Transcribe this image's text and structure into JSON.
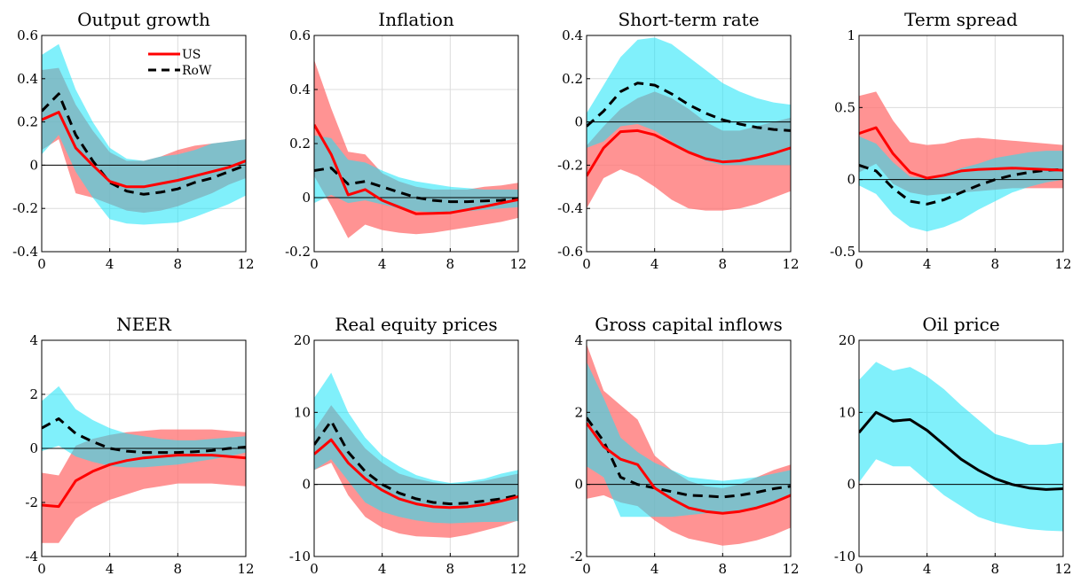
{
  "colors": {
    "us_line": "#ff0000",
    "us_band": "#ff6f6f",
    "row_line": "#000000",
    "row_band": "#17e3f8",
    "overlap": "#4a9fb0"
  },
  "chart_data": [
    {
      "type": "line",
      "title": "Output growth",
      "xlim": [
        0,
        12
      ],
      "ylim": [
        -0.4,
        0.6
      ],
      "xticks": [
        "0",
        "4",
        "8",
        "12"
      ],
      "yticks": [
        "-0.4",
        "-0.2",
        "0",
        "0.2",
        "0.4",
        "0.6"
      ],
      "legend": {
        "position": "top-right",
        "entries": [
          "US",
          "RoW"
        ]
      },
      "grid": true,
      "x": [
        0,
        1,
        2,
        3,
        4,
        5,
        6,
        7,
        8,
        9,
        10,
        11,
        12
      ],
      "series": [
        {
          "name": "US",
          "style": "solid",
          "color": "#ff0000",
          "values": [
            0.21,
            0.245,
            0.08,
            0.0,
            -0.075,
            -0.1,
            -0.1,
            -0.085,
            -0.07,
            -0.05,
            -0.03,
            -0.01,
            0.02
          ],
          "lower": [
            0.07,
            0.12,
            -0.13,
            -0.15,
            -0.18,
            -0.21,
            -0.22,
            -0.21,
            -0.19,
            -0.16,
            -0.13,
            -0.09,
            -0.06
          ],
          "upper": [
            0.44,
            0.45,
            0.28,
            0.16,
            0.06,
            0.02,
            0.02,
            0.04,
            0.07,
            0.09,
            0.1,
            0.11,
            0.12
          ]
        },
        {
          "name": "RoW",
          "style": "dashed",
          "color": "#000000",
          "values": [
            0.25,
            0.33,
            0.14,
            0.02,
            -0.08,
            -0.12,
            -0.135,
            -0.125,
            -0.11,
            -0.08,
            -0.06,
            -0.03,
            0.0
          ],
          "lower": [
            0.05,
            0.14,
            -0.03,
            -0.15,
            -0.25,
            -0.27,
            -0.275,
            -0.27,
            -0.265,
            -0.24,
            -0.21,
            -0.18,
            -0.14
          ],
          "upper": [
            0.51,
            0.56,
            0.35,
            0.2,
            0.08,
            0.03,
            0.02,
            0.04,
            0.05,
            0.07,
            0.1,
            0.11,
            0.12
          ]
        }
      ]
    },
    {
      "type": "line",
      "title": "Inflation",
      "xlim": [
        0,
        12
      ],
      "ylim": [
        -0.2,
        0.6
      ],
      "xticks": [
        "0",
        "4",
        "8",
        "12"
      ],
      "yticks": [
        "-0.2",
        "0",
        "0.2",
        "0.4",
        "0.6"
      ],
      "grid": true,
      "x": [
        0,
        1,
        2,
        3,
        4,
        5,
        6,
        7,
        8,
        9,
        10,
        11,
        12
      ],
      "series": [
        {
          "name": "US",
          "style": "solid",
          "color": "#ff0000",
          "values": [
            0.27,
            0.16,
            0.01,
            0.03,
            -0.01,
            -0.035,
            -0.06,
            -0.058,
            -0.056,
            -0.045,
            -0.033,
            -0.02,
            -0.008
          ],
          "lower": [
            0.08,
            -0.03,
            -0.15,
            -0.1,
            -0.12,
            -0.13,
            -0.135,
            -0.13,
            -0.12,
            -0.11,
            -0.1,
            -0.09,
            -0.075
          ],
          "upper": [
            0.51,
            0.33,
            0.17,
            0.16,
            0.09,
            0.06,
            0.04,
            0.03,
            0.03,
            0.03,
            0.04,
            0.045,
            0.055
          ]
        },
        {
          "name": "RoW",
          "style": "dashed",
          "color": "#000000",
          "values": [
            0.1,
            0.11,
            0.05,
            0.06,
            0.04,
            0.02,
            0.0,
            -0.01,
            -0.015,
            -0.015,
            -0.012,
            -0.01,
            -0.005
          ],
          "lower": [
            -0.02,
            0.01,
            -0.02,
            -0.01,
            -0.025,
            -0.04,
            -0.05,
            -0.055,
            -0.055,
            -0.05,
            -0.045,
            -0.04,
            -0.035
          ],
          "upper": [
            0.23,
            0.22,
            0.14,
            0.13,
            0.1,
            0.075,
            0.06,
            0.05,
            0.04,
            0.035,
            0.03,
            0.03,
            0.03
          ]
        }
      ]
    },
    {
      "type": "line",
      "title": "Short-term rate",
      "xlim": [
        0,
        12
      ],
      "ylim": [
        -0.6,
        0.4
      ],
      "xticks": [
        "0",
        "4",
        "8",
        "12"
      ],
      "yticks": [
        "-0.6",
        "-0.4",
        "-0.2",
        "0",
        "0.2",
        "0.4"
      ],
      "grid": true,
      "x": [
        0,
        1,
        2,
        3,
        4,
        5,
        6,
        7,
        8,
        9,
        10,
        11,
        12
      ],
      "series": [
        {
          "name": "US",
          "style": "solid",
          "color": "#ff0000",
          "values": [
            -0.25,
            -0.12,
            -0.045,
            -0.04,
            -0.06,
            -0.1,
            -0.14,
            -0.17,
            -0.185,
            -0.18,
            -0.165,
            -0.145,
            -0.12
          ],
          "lower": [
            -0.4,
            -0.26,
            -0.22,
            -0.25,
            -0.3,
            -0.36,
            -0.4,
            -0.41,
            -0.41,
            -0.4,
            -0.38,
            -0.35,
            -0.32
          ],
          "upper": [
            -0.11,
            -0.02,
            0.06,
            0.11,
            0.14,
            0.11,
            0.06,
            0.0,
            -0.04,
            -0.04,
            -0.02,
            0.0,
            0.02
          ]
        },
        {
          "name": "RoW",
          "style": "dashed",
          "color": "#000000",
          "values": [
            -0.02,
            0.05,
            0.14,
            0.18,
            0.17,
            0.13,
            0.08,
            0.04,
            0.01,
            -0.01,
            -0.025,
            -0.035,
            -0.04
          ],
          "lower": [
            -0.12,
            -0.09,
            -0.02,
            -0.01,
            -0.04,
            -0.09,
            -0.14,
            -0.18,
            -0.2,
            -0.2,
            -0.2,
            -0.2,
            -0.2
          ],
          "upper": [
            0.04,
            0.17,
            0.3,
            0.38,
            0.39,
            0.36,
            0.3,
            0.24,
            0.18,
            0.14,
            0.11,
            0.09,
            0.08
          ]
        }
      ]
    },
    {
      "type": "line",
      "title": "Term spread",
      "xlim": [
        0,
        12
      ],
      "ylim": [
        -0.5,
        1
      ],
      "xticks": [
        "0",
        "4",
        "8",
        "12"
      ],
      "yticks": [
        "-0.5",
        "0",
        "0.5",
        "1"
      ],
      "grid": true,
      "x": [
        0,
        1,
        2,
        3,
        4,
        5,
        6,
        7,
        8,
        9,
        10,
        11,
        12
      ],
      "series": [
        {
          "name": "US",
          "style": "solid",
          "color": "#ff0000",
          "values": [
            0.32,
            0.36,
            0.18,
            0.05,
            0.01,
            0.03,
            0.06,
            0.07,
            0.075,
            0.08,
            0.075,
            0.07,
            0.065
          ],
          "lower": [
            0.05,
            0.11,
            -0.03,
            -0.09,
            -0.11,
            -0.1,
            -0.09,
            -0.08,
            -0.07,
            -0.06,
            -0.06,
            -0.06,
            -0.06
          ],
          "upper": [
            0.58,
            0.61,
            0.41,
            0.26,
            0.24,
            0.25,
            0.28,
            0.29,
            0.28,
            0.27,
            0.26,
            0.25,
            0.24
          ]
        },
        {
          "name": "RoW",
          "style": "dashed",
          "color": "#000000",
          "values": [
            0.1,
            0.06,
            -0.06,
            -0.15,
            -0.17,
            -0.14,
            -0.09,
            -0.04,
            0.0,
            0.03,
            0.05,
            0.065,
            0.07
          ],
          "lower": [
            -0.04,
            -0.1,
            -0.24,
            -0.33,
            -0.36,
            -0.33,
            -0.28,
            -0.21,
            -0.15,
            -0.09,
            -0.05,
            -0.02,
            0.0
          ],
          "upper": [
            0.3,
            0.25,
            0.12,
            0.02,
            0.01,
            0.04,
            0.08,
            0.11,
            0.15,
            0.17,
            0.19,
            0.2,
            0.2
          ]
        }
      ]
    },
    {
      "type": "line",
      "title": "NEER",
      "xlim": [
        0,
        12
      ],
      "ylim": [
        -4,
        4
      ],
      "xticks": [
        "0",
        "4",
        "8",
        "12"
      ],
      "yticks": [
        "-4",
        "-2",
        "0",
        "2",
        "4"
      ],
      "grid": true,
      "x": [
        0,
        1,
        2,
        3,
        4,
        5,
        6,
        7,
        8,
        9,
        10,
        11,
        12
      ],
      "series": [
        {
          "name": "US",
          "style": "solid",
          "color": "#ff0000",
          "values": [
            -2.1,
            -2.15,
            -1.2,
            -0.85,
            -0.6,
            -0.45,
            -0.35,
            -0.3,
            -0.25,
            -0.25,
            -0.25,
            -0.3,
            -0.35
          ],
          "lower": [
            -3.5,
            -3.5,
            -2.6,
            -2.2,
            -1.9,
            -1.7,
            -1.5,
            -1.4,
            -1.3,
            -1.3,
            -1.3,
            -1.35,
            -1.4
          ],
          "upper": [
            -0.9,
            -1.0,
            0.1,
            0.35,
            0.5,
            0.6,
            0.65,
            0.7,
            0.7,
            0.7,
            0.7,
            0.65,
            0.6
          ]
        },
        {
          "name": "RoW",
          "style": "dashed",
          "color": "#000000",
          "values": [
            0.75,
            1.1,
            0.55,
            0.25,
            0.0,
            -0.1,
            -0.15,
            -0.15,
            -0.15,
            -0.12,
            -0.08,
            0.0,
            0.05
          ],
          "lower": [
            -0.1,
            0.1,
            -0.3,
            -0.5,
            -0.65,
            -0.7,
            -0.7,
            -0.65,
            -0.6,
            -0.5,
            -0.4,
            -0.3,
            -0.15
          ],
          "upper": [
            1.75,
            2.3,
            1.45,
            1.05,
            0.75,
            0.55,
            0.45,
            0.35,
            0.3,
            0.3,
            0.35,
            0.4,
            0.45
          ]
        }
      ]
    },
    {
      "type": "line",
      "title": "Real equity prices",
      "xlim": [
        0,
        12
      ],
      "ylim": [
        -10,
        20
      ],
      "xticks": [
        "0",
        "4",
        "8",
        "12"
      ],
      "yticks": [
        "-10",
        "0",
        "10",
        "20"
      ],
      "grid": true,
      "x": [
        0,
        1,
        2,
        3,
        4,
        5,
        6,
        7,
        8,
        9,
        10,
        11,
        12
      ],
      "series": [
        {
          "name": "US",
          "style": "solid",
          "color": "#ff0000",
          "values": [
            4.2,
            6.2,
            3.0,
            0.8,
            -0.8,
            -2.0,
            -2.7,
            -3.1,
            -3.2,
            -3.1,
            -2.8,
            -2.3,
            -1.7
          ],
          "lower": [
            2.0,
            3.0,
            -1.5,
            -4.5,
            -6.0,
            -6.8,
            -7.2,
            -7.3,
            -7.4,
            -7.0,
            -6.4,
            -5.8,
            -5.0
          ],
          "upper": [
            7.5,
            11.0,
            8.0,
            5.0,
            3.0,
            1.5,
            0.8,
            0.3,
            0.0,
            0.2,
            0.5,
            1.0,
            1.5
          ]
        },
        {
          "name": "RoW",
          "style": "dashed",
          "color": "#000000",
          "values": [
            5.5,
            8.8,
            4.5,
            1.8,
            0.0,
            -1.2,
            -2.0,
            -2.5,
            -2.7,
            -2.6,
            -2.3,
            -2.0,
            -1.5
          ],
          "lower": [
            2.0,
            3.5,
            0.5,
            -2.5,
            -3.8,
            -4.5,
            -5.0,
            -5.3,
            -5.4,
            -5.3,
            -5.2,
            -5.2,
            -5.1
          ],
          "upper": [
            12.0,
            15.5,
            10.0,
            6.5,
            4.0,
            2.5,
            1.3,
            0.6,
            0.2,
            0.4,
            0.8,
            1.5,
            2.0
          ]
        }
      ]
    },
    {
      "type": "line",
      "title": "Gross capital inflows",
      "xlim": [
        0,
        12
      ],
      "ylim": [
        -2,
        4
      ],
      "xticks": [
        "0",
        "4",
        "8",
        "12"
      ],
      "yticks": [
        "-2",
        "0",
        "2",
        "4"
      ],
      "grid": true,
      "x": [
        0,
        1,
        2,
        3,
        4,
        5,
        6,
        7,
        8,
        9,
        10,
        11,
        12
      ],
      "series": [
        {
          "name": "US",
          "style": "solid",
          "color": "#ff0000",
          "values": [
            1.7,
            1.05,
            0.7,
            0.55,
            -0.1,
            -0.4,
            -0.65,
            -0.75,
            -0.8,
            -0.75,
            -0.65,
            -0.5,
            -0.3
          ],
          "lower": [
            -0.4,
            -0.3,
            -0.5,
            -0.6,
            -1.0,
            -1.3,
            -1.5,
            -1.6,
            -1.7,
            -1.65,
            -1.55,
            -1.4,
            -1.2
          ],
          "upper": [
            3.9,
            2.6,
            2.2,
            1.8,
            0.8,
            0.4,
            0.1,
            -0.05,
            -0.1,
            0.0,
            0.2,
            0.4,
            0.55
          ]
        },
        {
          "name": "RoW",
          "style": "dashed",
          "color": "#000000",
          "values": [
            1.85,
            1.2,
            0.2,
            0.0,
            -0.1,
            -0.2,
            -0.3,
            -0.32,
            -0.35,
            -0.3,
            -0.22,
            -0.12,
            -0.05
          ],
          "lower": [
            0.5,
            0.2,
            -0.9,
            -0.9,
            -0.9,
            -0.9,
            -0.85,
            -0.8,
            -0.78,
            -0.72,
            -0.62,
            -0.5,
            -0.35
          ],
          "upper": [
            3.4,
            2.4,
            1.3,
            0.9,
            0.6,
            0.4,
            0.2,
            0.15,
            0.1,
            0.15,
            0.2,
            0.3,
            0.4
          ]
        }
      ]
    },
    {
      "type": "line",
      "title": "Oil price",
      "xlim": [
        0,
        12
      ],
      "ylim": [
        -10,
        20
      ],
      "xticks": [
        "0",
        "4",
        "8",
        "12"
      ],
      "yticks": [
        "-10",
        "0",
        "10",
        "20"
      ],
      "grid": true,
      "x": [
        0,
        1,
        2,
        3,
        4,
        5,
        6,
        7,
        8,
        9,
        10,
        11,
        12
      ],
      "series": [
        {
          "name": "RoW",
          "style": "solid",
          "color": "#000000",
          "values": [
            7.2,
            10.0,
            8.8,
            9.0,
            7.5,
            5.5,
            3.5,
            2.0,
            0.8,
            0.0,
            -0.5,
            -0.7,
            -0.6
          ],
          "lower": [
            0.3,
            3.5,
            2.5,
            2.5,
            0.5,
            -1.5,
            -3.0,
            -4.5,
            -5.3,
            -5.8,
            -6.2,
            -6.4,
            -6.5
          ],
          "upper": [
            14.5,
            17.0,
            15.8,
            16.3,
            15.0,
            13.2,
            11.0,
            9.0,
            7.0,
            6.3,
            5.5,
            5.5,
            5.8
          ]
        }
      ]
    }
  ]
}
